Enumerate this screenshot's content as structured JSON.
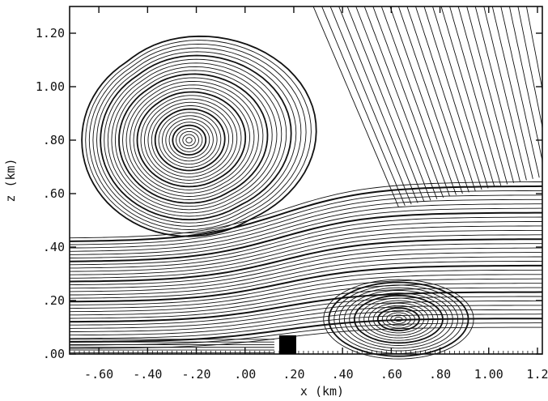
{
  "chart_data": {
    "type": "streamline",
    "xlabel": "x (km)",
    "ylabel": "z (km)",
    "xlim": [
      -0.72,
      1.22
    ],
    "ylim": [
      0.0,
      1.3
    ],
    "x_ticks": [
      {
        "value": -0.6,
        "label": "-.60"
      },
      {
        "value": -0.4,
        "label": "-.40"
      },
      {
        "value": -0.2,
        "label": "-.20"
      },
      {
        "value": 0.0,
        "label": ".00"
      },
      {
        "value": 0.2,
        "label": ".20"
      },
      {
        "value": 0.4,
        "label": ".40"
      },
      {
        "value": 0.6,
        "label": ".60"
      },
      {
        "value": 0.8,
        "label": ".80"
      },
      {
        "value": 1.0,
        "label": "1.00"
      },
      {
        "value": 1.2,
        "label": "1.2"
      }
    ],
    "y_ticks": [
      {
        "value": 0.0,
        "label": ".00"
      },
      {
        "value": 0.2,
        "label": ".20"
      },
      {
        "value": 0.4,
        "label": ".40"
      },
      {
        "value": 0.6,
        "label": ".60"
      },
      {
        "value": 0.8,
        "label": ".80"
      },
      {
        "value": 1.0,
        "label": "1.00"
      },
      {
        "value": 1.2,
        "label": "1.20"
      }
    ],
    "vortices": [
      {
        "center": [
          -0.23,
          0.8
        ],
        "rx": 0.44,
        "rz": 0.36
      },
      {
        "center": [
          0.63,
          0.13
        ],
        "rx": 0.28,
        "rz": 0.14
      }
    ],
    "obstacle": {
      "x": [
        0.14,
        0.21
      ],
      "z": [
        0.0,
        0.07
      ]
    },
    "grid": false,
    "color": "#111111"
  }
}
